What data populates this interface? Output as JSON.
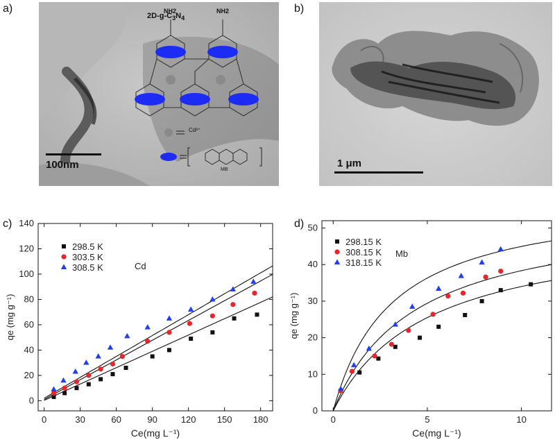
{
  "panels": {
    "a": {
      "label": "a)",
      "scalebar": "100nm",
      "structure_title": "2D-g-C3N4",
      "title_main": "2D-g-C",
      "title_sub1": "3",
      "title_mid": "N",
      "title_sub2": "4",
      "nh2": "NH2",
      "legend_cd": "Cd²⁺",
      "legend_mb": "MB"
    },
    "b": {
      "label": "b)",
      "scalebar": "1 μm"
    },
    "c": {
      "label": "c)"
    },
    "d": {
      "label": "d)"
    }
  },
  "chart_data": [
    {
      "id": "c",
      "type": "scatter",
      "xlabel": "Ce(mg L⁻¹)",
      "ylabel": "qe (mg g⁻¹)",
      "xlim": [
        -5,
        190
      ],
      "ylim": [
        -8,
        140
      ],
      "xticks": [
        0,
        30,
        60,
        90,
        120,
        150,
        180
      ],
      "yticks": [
        0,
        20,
        40,
        60,
        80,
        100,
        120,
        140
      ],
      "annotation": "Cd",
      "series": [
        {
          "name": "298.5 K",
          "marker": "square",
          "color": "#111111",
          "x": [
            8,
            17,
            27,
            37,
            47,
            57,
            68,
            90,
            104,
            122,
            140,
            158,
            177
          ],
          "y": [
            3,
            6,
            10,
            13,
            17,
            21,
            26,
            35,
            40,
            49,
            54,
            65,
            68
          ],
          "fit": {
            "a": 0.3,
            "b": 0.43
          }
        },
        {
          "name": "303.5 K",
          "marker": "circle",
          "color": "#e8262a",
          "x": [
            8,
            17,
            27,
            37,
            47,
            57,
            65,
            86,
            104,
            121,
            140,
            157,
            175
          ],
          "y": [
            6,
            10,
            15,
            20,
            25,
            29,
            35,
            47,
            54,
            61,
            67,
            76,
            85
          ],
          "fit": {
            "a": 1.0,
            "b": 0.52
          }
        },
        {
          "name": "308.5 K",
          "marker": "triangle",
          "color": "#1f3ff0",
          "x": [
            8,
            16,
            26,
            35,
            45,
            55,
            69,
            86,
            104,
            122,
            140,
            157,
            174
          ],
          "y": [
            9,
            16,
            23,
            30,
            35,
            42,
            51,
            58,
            65,
            72,
            80,
            88,
            94
          ],
          "fit": {
            "a": 2.0,
            "b": 0.55
          }
        }
      ]
    },
    {
      "id": "d",
      "type": "scatter",
      "xlabel": "Ce(mg L⁻¹)",
      "ylabel": "qe (mg g⁻¹)",
      "xlim": [
        -0.6,
        11.6
      ],
      "ylim": [
        0,
        52
      ],
      "xticks": [
        0,
        5,
        10
      ],
      "yticks": [
        0,
        10,
        20,
        30,
        40,
        50
      ],
      "annotation": "Mb",
      "series": [
        {
          "name": "298.15 K",
          "marker": "square",
          "color": "#111111",
          "x": [
            0.4,
            1.4,
            2.4,
            3.3,
            4.6,
            5.6,
            7.0,
            7.9,
            8.9,
            10.5
          ],
          "y": [
            5.5,
            10.5,
            14.3,
            17.5,
            20.0,
            23.0,
            26.2,
            30.0,
            33.0,
            34.6
          ],
          "fit": {
            "qm": 51,
            "K": 0.2
          }
        },
        {
          "name": "308.15 K",
          "marker": "circle",
          "color": "#e8262a",
          "x": [
            0.4,
            1.0,
            2.2,
            3.1,
            4.0,
            5.3,
            6.1,
            6.9,
            8.1,
            8.9
          ],
          "y": [
            5.5,
            10.8,
            15.0,
            18.2,
            22.0,
            26.4,
            31.4,
            32.2,
            36.6,
            38.2
          ],
          "fit": {
            "qm": 55,
            "K": 0.23
          }
        },
        {
          "name": "318.15 K",
          "marker": "triangle",
          "color": "#1f3ff0",
          "x": [
            0.4,
            1.1,
            1.9,
            3.3,
            4.2,
            5.6,
            6.8,
            7.9,
            8.9
          ],
          "y": [
            6.0,
            12.5,
            17.0,
            23.6,
            28.5,
            33.4,
            36.9,
            40.6,
            44.2
          ],
          "fit": {
            "qm": 59,
            "K": 0.32
          }
        }
      ]
    }
  ]
}
